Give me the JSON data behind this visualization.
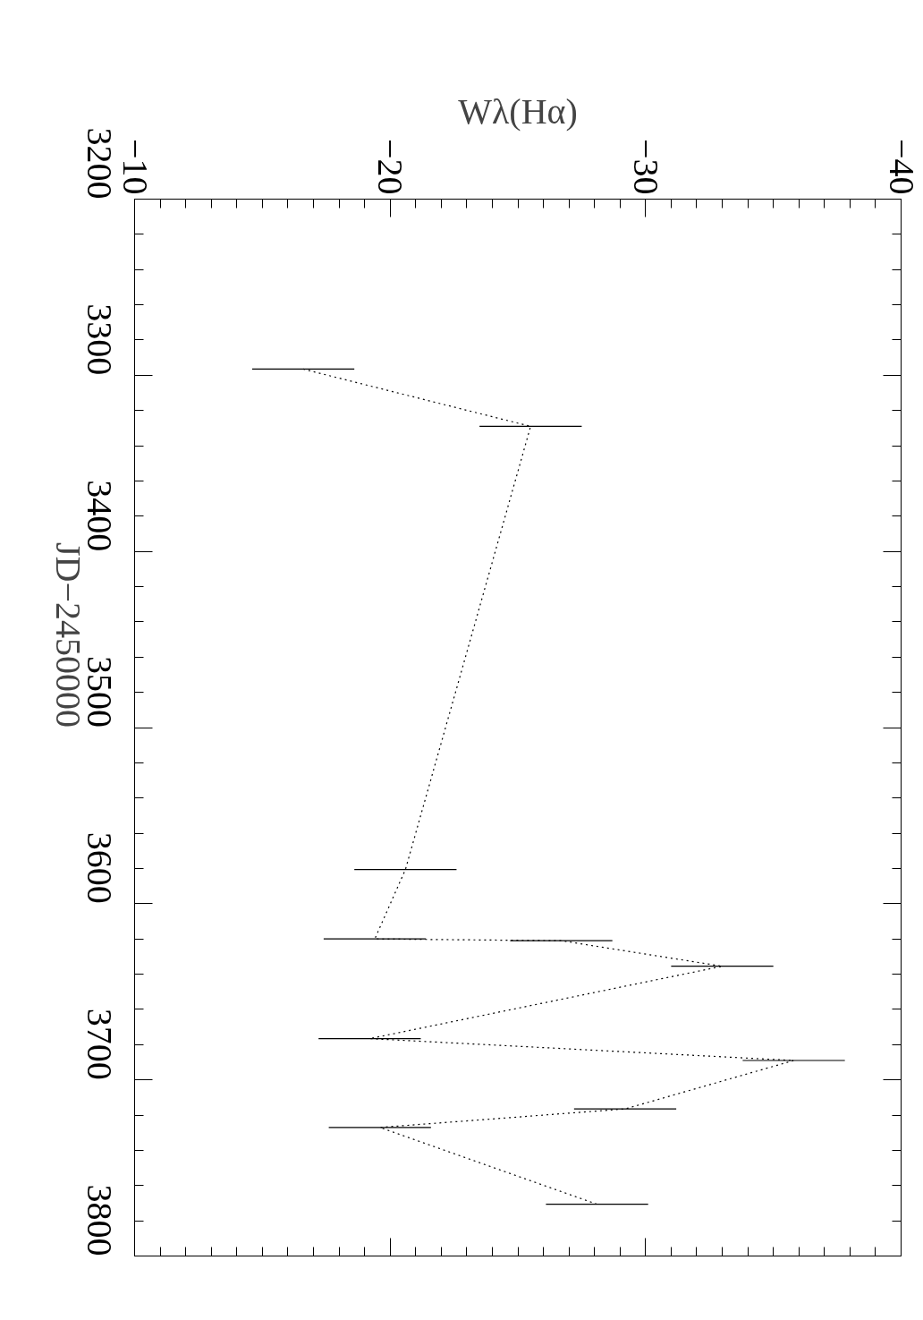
{
  "chart_data": {
    "type": "line",
    "xlabel": "Wλ(Hα)",
    "ylabel": "JD−2450000",
    "x": [
      -16.6,
      -25.5,
      -20.6,
      -19.4,
      -26.7,
      -33.0,
      -19.2,
      -35.8,
      -29.2,
      -19.6,
      -28.1
    ],
    "values": [
      3296.5,
      3329,
      3580.6,
      3620,
      3621,
      3635.5,
      3676.6,
      3689,
      3716.5,
      3727,
      3770.6
    ],
    "xerrors": [
      2.0,
      2.0,
      2.0,
      2.0,
      2.0,
      2.0,
      2.0,
      2.0,
      2.0,
      2.0,
      2.0
    ],
    "color": "#000000",
    "ylim": [
      3800,
      3200
    ],
    "yticks": [
      3200,
      3300,
      3400,
      3500,
      3600,
      3700,
      3800
    ],
    "xlim": [
      -10,
      -40
    ],
    "xticks": [
      {
        "value": -10,
        "label": "−10"
      },
      {
        "value": -20,
        "label": "−20"
      },
      {
        "value": -30,
        "label": "−30"
      },
      {
        "value": -40,
        "label": "−40"
      }
    ],
    "line_style": "dotted",
    "marker": "none",
    "grid": false
  }
}
